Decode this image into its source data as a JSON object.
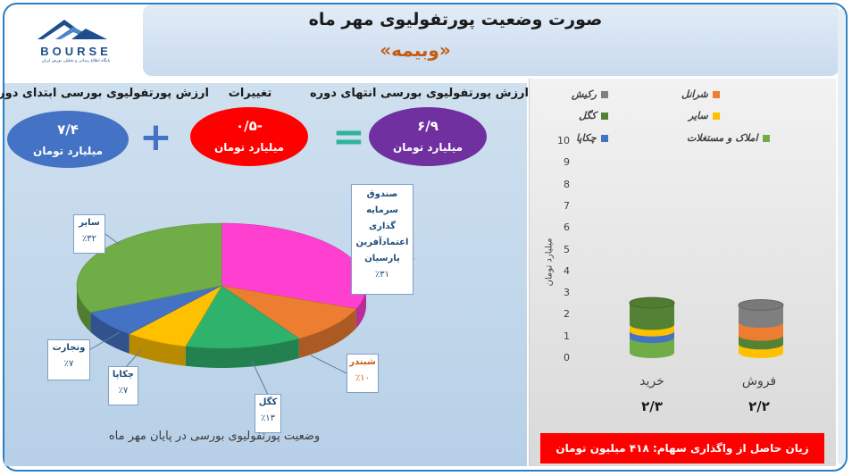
{
  "title": "صورت وضعیت پورتفولیوی مهر ماه",
  "subtitle": "«وبیمه»",
  "logo": {
    "word": "BOURSE",
    "tagline": "پایگاه اطلاع رسانی و تحلیلی بورس ایران"
  },
  "summary": {
    "start": {
      "header": "ارزش پورتفولیوی بورسی ابتدای دوره",
      "value": "۷/۴",
      "unit": "میلیارد تومان",
      "color": "#4472c4"
    },
    "change": {
      "header": "تغییرات",
      "value": "-۰/۵",
      "unit": "میلیارد تومان",
      "color": "#ff0000"
    },
    "end": {
      "header": "ارزش پورتفولیوی بورسی انتهای دوره",
      "value": "۶/۹",
      "unit": "میلیارد تومان",
      "color": "#7030a0"
    },
    "plus_symbol": "+",
    "equals_symbol": "="
  },
  "pie_title": "وضعیت پورتفولیوی بورسی در پایان مهر ماه",
  "pie_labels": {
    "fund": {
      "name_lines": [
        "صندوق سرمایه",
        "گذاری",
        "اعتمادآفرین",
        "پارسیان"
      ],
      "pct": "٪۳۱"
    },
    "shabandar": {
      "name": "شبندر",
      "pct": "٪۱۰"
    },
    "kegol": {
      "name": "کگل",
      "pct": "٪۱۳"
    },
    "chekapa": {
      "name": "چکاپا",
      "pct": "٪۷"
    },
    "tejarat": {
      "name": "وتجارت",
      "pct": "٪۷"
    },
    "sayer": {
      "name": "سایر",
      "pct": "٪۳۲"
    }
  },
  "legend": [
    {
      "label": "رکیش",
      "color": "#7f7f7f"
    },
    {
      "label": "شرانل",
      "color": "#ed7d31"
    },
    {
      "label": "کگل",
      "color": "#548235"
    },
    {
      "label": "سایر",
      "color": "#ffc000"
    },
    {
      "label": "چکاپا",
      "color": "#4472c4"
    },
    {
      "label": "املاک و مستغلات",
      "color": "#70ad47"
    }
  ],
  "bar_axis_label": "میلیارد تومان",
  "bar_categories": [
    {
      "name": "خرید",
      "total": "۲/۳"
    },
    {
      "name": "فروش",
      "total": "۲/۲"
    }
  ],
  "revenue_text": "زیان حاصل از واگذاری سهام: ۴۱۸ میلیون تومان",
  "chart_data": [
    {
      "type": "pie",
      "title": "وضعیت پورتفولیوی بورسی در پایان مهر ماه",
      "categories": [
        "صندوق سرمایه گذاری اعتمادآفرین پارسیان",
        "شبندر",
        "کگل",
        "چکاپا",
        "وتجارت",
        "سایر"
      ],
      "values": [
        31,
        10,
        13,
        7,
        7,
        32
      ],
      "colors": [
        "#ff3fd0",
        "#ed7d31",
        "#2fb36c",
        "#ffc000",
        "#4472c4",
        "#70ad47"
      ]
    },
    {
      "type": "bar",
      "categories": [
        "خرید",
        "فروش"
      ],
      "ylabel": "میلیارد تومان",
      "ylim": [
        0,
        10
      ],
      "yticks": [
        0,
        1,
        2,
        3,
        4,
        5,
        6,
        7,
        8,
        9,
        10
      ],
      "series": [
        {
          "name": "املاک و مستغلات",
          "values": [
            0.7,
            0
          ],
          "color": "#70ad47"
        },
        {
          "name": "چکاپا",
          "values": [
            0.3,
            0
          ],
          "color": "#4472c4"
        },
        {
          "name": "سایر",
          "values": [
            0.3,
            0.4
          ],
          "color": "#ffc000"
        },
        {
          "name": "کگل",
          "values": [
            1.0,
            0.4
          ],
          "color": "#548235"
        },
        {
          "name": "شرانل",
          "values": [
            0,
            0.6
          ],
          "color": "#ed7d31"
        },
        {
          "name": "رکیش",
          "values": [
            0,
            0.8
          ],
          "color": "#7f7f7f"
        }
      ],
      "totals": [
        2.3,
        2.2
      ]
    }
  ]
}
